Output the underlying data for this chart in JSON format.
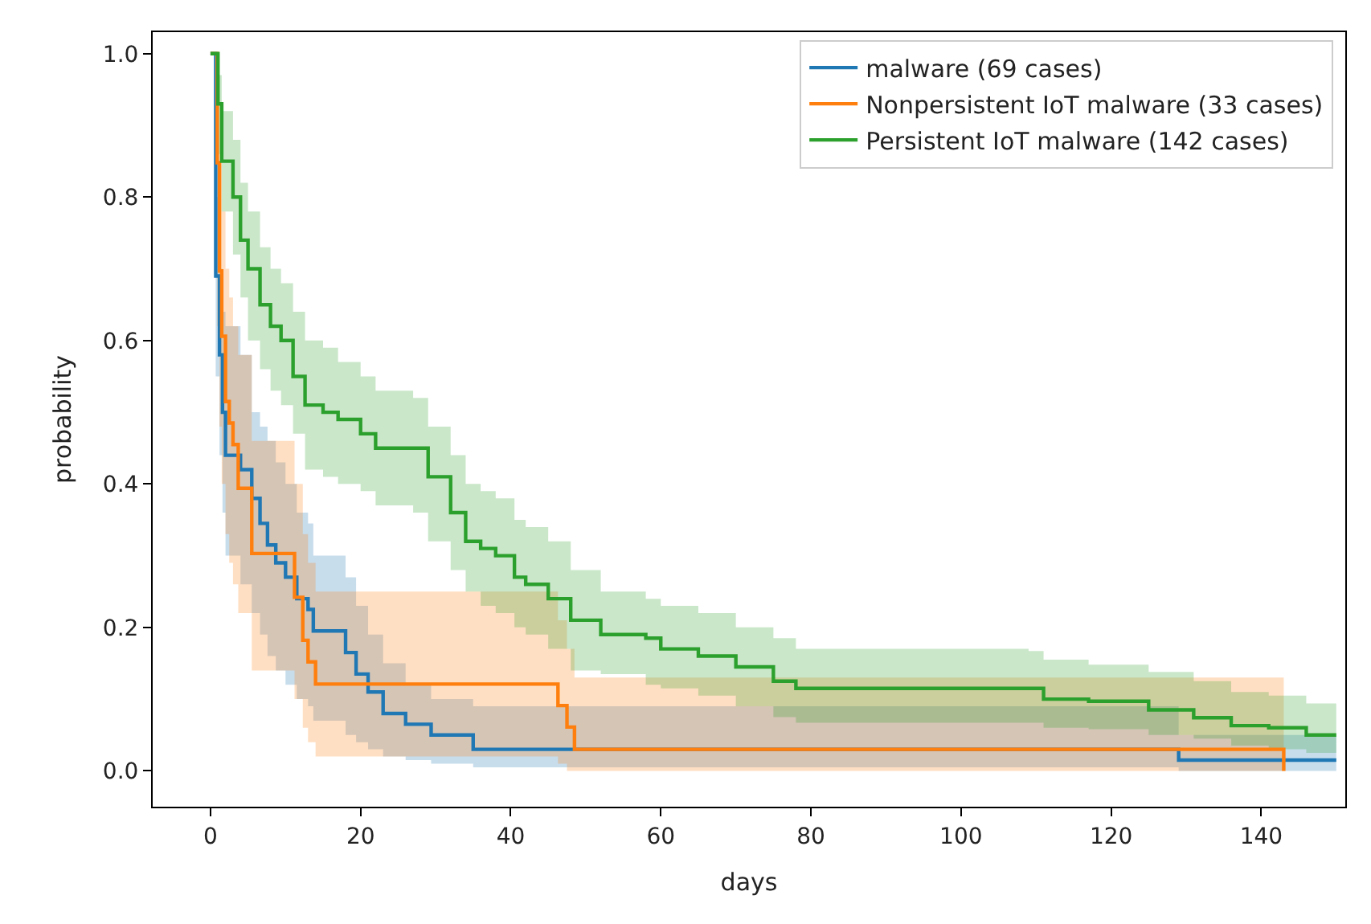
{
  "chart_data": {
    "type": "step",
    "xlabel": "days",
    "ylabel": "probability",
    "xlim": [
      -7.7,
      151.2
    ],
    "ylim": [
      -0.05,
      1.03
    ],
    "xticks": [
      0,
      20,
      40,
      60,
      80,
      100,
      120,
      140
    ],
    "yticks": [
      {
        "value": 0,
        "label": "0.0"
      },
      {
        "value": 0.2,
        "label": "0.2"
      },
      {
        "value": 0.4,
        "label": "0.4"
      },
      {
        "value": 0.6,
        "label": "0.6"
      },
      {
        "value": 0.8,
        "label": "0.8"
      },
      {
        "value": 1.0,
        "label": "1.0"
      }
    ],
    "grid": false,
    "legend": "top right",
    "line_style": "solid",
    "marker": "none",
    "series": [
      {
        "name": "malware (69 cases)",
        "color": "#1f77b4",
        "x": [
          0,
          0.7,
          1.2,
          1.6,
          2,
          4,
          5.5,
          6.6,
          7.6,
          8.7,
          10,
          11.5,
          13,
          13.7,
          18,
          19.4,
          21,
          23,
          26,
          29.4,
          35,
          129,
          150
        ],
        "values": [
          1.0,
          0.69,
          0.58,
          0.5,
          0.44,
          0.42,
          0.38,
          0.345,
          0.315,
          0.29,
          0.27,
          0.24,
          0.225,
          0.195,
          0.165,
          0.135,
          0.11,
          0.08,
          0.065,
          0.05,
          0.03,
          0.015,
          0.015
        ],
        "lower": [
          1.0,
          0.55,
          0.44,
          0.36,
          0.3,
          0.26,
          0.22,
          0.19,
          0.16,
          0.14,
          0.12,
          0.1,
          0.09,
          0.07,
          0.05,
          0.04,
          0.03,
          0.02,
          0.015,
          0.01,
          0.005,
          0.0,
          0.0
        ],
        "upper": [
          1.0,
          0.8,
          0.7,
          0.64,
          0.62,
          0.58,
          0.5,
          0.48,
          0.46,
          0.43,
          0.4,
          0.36,
          0.345,
          0.3,
          0.27,
          0.23,
          0.19,
          0.15,
          0.12,
          0.1,
          0.09,
          0.05,
          0.05
        ]
      },
      {
        "name": "Nonpersistent IoT malware (33 cases)",
        "color": "#ff7f0e",
        "x": [
          0,
          0.9,
          1.2,
          1.5,
          2,
          2.5,
          3,
          3.7,
          5.5,
          11.2,
          12.3,
          13,
          14,
          46.3,
          47.5,
          48.5,
          143
        ],
        "values": [
          1.0,
          0.848,
          0.697,
          0.606,
          0.515,
          0.485,
          0.455,
          0.394,
          0.303,
          0.242,
          0.182,
          0.152,
          0.121,
          0.091,
          0.061,
          0.03,
          0.0
        ],
        "lower": [
          1.0,
          0.62,
          0.48,
          0.4,
          0.33,
          0.29,
          0.26,
          0.22,
          0.14,
          0.1,
          0.06,
          0.04,
          0.02,
          0.01,
          0.0,
          0.0,
          0.0
        ],
        "upper": [
          1.0,
          0.95,
          0.86,
          0.78,
          0.7,
          0.66,
          0.62,
          0.58,
          0.46,
          0.4,
          0.33,
          0.29,
          0.25,
          0.21,
          0.17,
          0.13,
          0.13
        ]
      },
      {
        "name": "Persistent IoT malware (142 cases)",
        "color": "#2ca02c",
        "x": [
          0,
          1,
          1.5,
          3,
          4,
          5,
          6.6,
          8,
          9.4,
          11,
          12.6,
          15,
          17,
          20,
          22,
          27,
          29,
          32,
          34,
          36,
          38,
          40.5,
          42,
          45,
          48,
          52,
          58,
          60,
          65,
          70,
          75,
          78,
          109,
          111,
          117,
          125,
          131,
          136,
          141,
          146,
          150
        ],
        "values": [
          1.0,
          0.93,
          0.85,
          0.8,
          0.74,
          0.7,
          0.65,
          0.62,
          0.6,
          0.55,
          0.51,
          0.5,
          0.49,
          0.47,
          0.45,
          0.45,
          0.41,
          0.36,
          0.32,
          0.31,
          0.3,
          0.27,
          0.26,
          0.24,
          0.21,
          0.19,
          0.185,
          0.17,
          0.16,
          0.145,
          0.125,
          0.115,
          0.115,
          0.1,
          0.097,
          0.085,
          0.074,
          0.063,
          0.06,
          0.05,
          0.05
        ],
        "lower": [
          1.0,
          0.86,
          0.78,
          0.72,
          0.66,
          0.6,
          0.56,
          0.53,
          0.51,
          0.47,
          0.42,
          0.41,
          0.4,
          0.39,
          0.37,
          0.36,
          0.32,
          0.28,
          0.25,
          0.23,
          0.22,
          0.2,
          0.19,
          0.17,
          0.14,
          0.135,
          0.12,
          0.115,
          0.105,
          0.09,
          0.075,
          0.067,
          0.067,
          0.06,
          0.058,
          0.05,
          0.045,
          0.035,
          0.03,
          0.025,
          0.025
        ],
        "upper": [
          1.0,
          0.97,
          0.92,
          0.88,
          0.82,
          0.78,
          0.73,
          0.7,
          0.68,
          0.64,
          0.6,
          0.59,
          0.57,
          0.55,
          0.53,
          0.52,
          0.48,
          0.44,
          0.4,
          0.39,
          0.38,
          0.35,
          0.34,
          0.32,
          0.28,
          0.25,
          0.24,
          0.23,
          0.22,
          0.2,
          0.185,
          0.17,
          0.167,
          0.155,
          0.148,
          0.138,
          0.125,
          0.11,
          0.105,
          0.094,
          0.094
        ]
      }
    ]
  }
}
